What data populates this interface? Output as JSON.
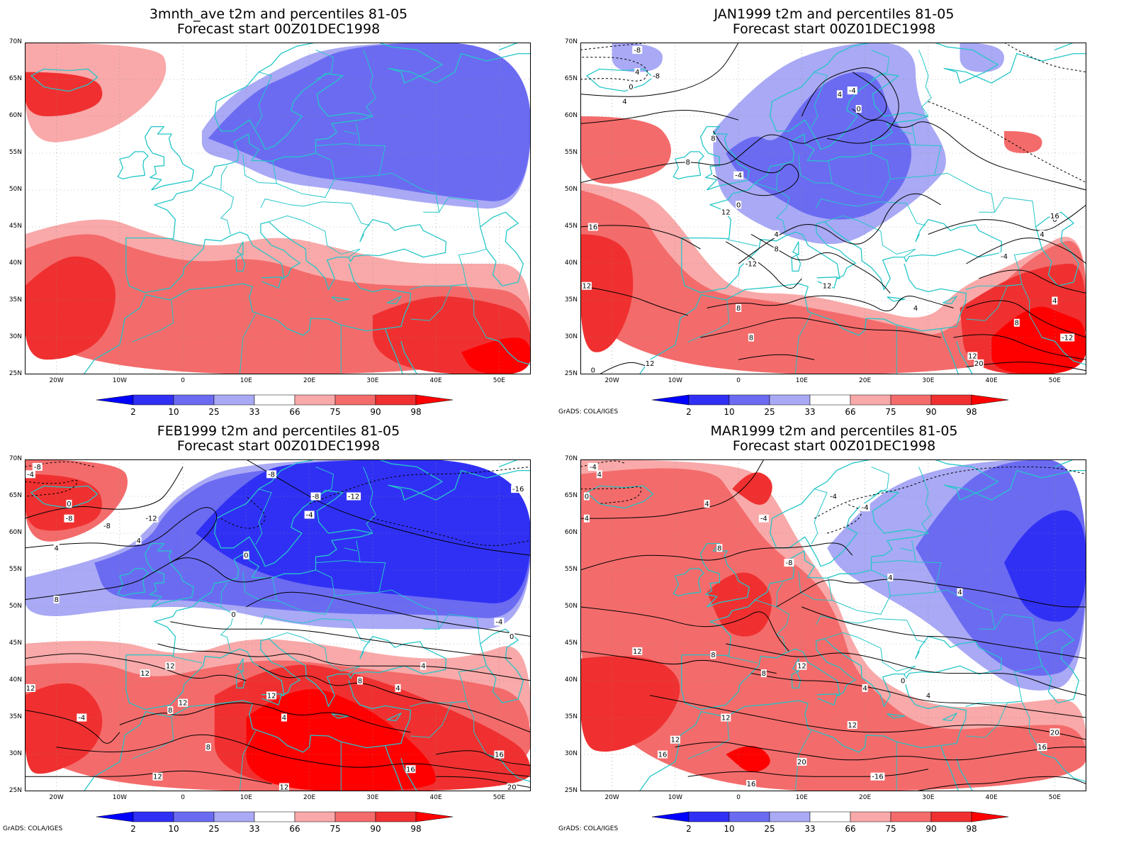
{
  "panels": [
    {
      "title_line1": "3mnth_ave t2m and percentiles 81-05",
      "title_line2": "Forecast start 00Z01DEC1998",
      "credit": "",
      "has_contours": false,
      "pattern": "ave"
    },
    {
      "title_line1": "JAN1999 t2m and percentiles 81-05",
      "title_line2": "Forecast start 00Z01DEC1998",
      "credit": "GrADS: COLA/IGES",
      "has_contours": true,
      "pattern": "jan",
      "contour_labels": [
        "-8",
        "4",
        "0",
        "-8",
        "4",
        "-4",
        "0",
        "4",
        "8",
        "8",
        "-4",
        "0",
        "12",
        "4",
        "8",
        "-12",
        "12",
        "16",
        "12",
        "8",
        "8",
        "12",
        "4",
        "-4",
        "4",
        "0",
        "12",
        "16",
        "20",
        "0",
        "4",
        "8",
        "-12"
      ]
    },
    {
      "title_line1": "FEB1999 t2m and percentiles 81-05",
      "title_line2": "Forecast start 00Z01DEC1998",
      "credit": "GrADS: COLA/IGES",
      "has_contours": true,
      "pattern": "feb",
      "contour_labels": [
        "-8",
        "-4",
        "0",
        "4",
        "-12",
        "-8",
        "-8",
        "-8",
        "-8",
        "-4",
        "0",
        "4",
        "-12",
        "-16",
        "8",
        "-4",
        "0",
        "0",
        "4",
        "12",
        "12",
        "8",
        "12",
        "4",
        "8",
        "12",
        "-4",
        "4",
        "12",
        "8",
        "12",
        "16",
        "12",
        "16",
        "20"
      ]
    },
    {
      "title_line1": "MAR1999 t2m and percentiles 81-05",
      "title_line2": "Forecast start 00Z01DEC1998",
      "credit": "GrADS: COLA/IGES",
      "has_contours": true,
      "pattern": "mar",
      "contour_labels": [
        "-4",
        "4",
        "0",
        "4",
        "4",
        "-4",
        "-4",
        "-4",
        "-8",
        "8",
        "4",
        "12",
        "8",
        "4",
        "12",
        "8",
        "4",
        "0",
        "4",
        "12",
        "12",
        "16",
        "12",
        "20",
        "16",
        "20",
        "16",
        "-16"
      ]
    }
  ],
  "axes": {
    "lat_labels": [
      "70N",
      "65N",
      "60N",
      "55N",
      "50N",
      "45N",
      "40N",
      "35N",
      "30N",
      "25N"
    ],
    "lon_labels": [
      "20W",
      "10W",
      "0",
      "10E",
      "20E",
      "30E",
      "40E",
      "50E"
    ]
  },
  "legend": {
    "thresholds": [
      "2",
      "10",
      "25",
      "33",
      "66",
      "75",
      "90",
      "98"
    ],
    "colors": [
      "#0000ff",
      "#3030f5",
      "#6b6bf2",
      "#a9a9f5",
      "#ffffff",
      "#f9a9a9",
      "#f46b6b",
      "#f03030",
      "#ff0000"
    ]
  },
  "palette": {
    "coast": "#25c6c8",
    "contour": "#000000"
  }
}
